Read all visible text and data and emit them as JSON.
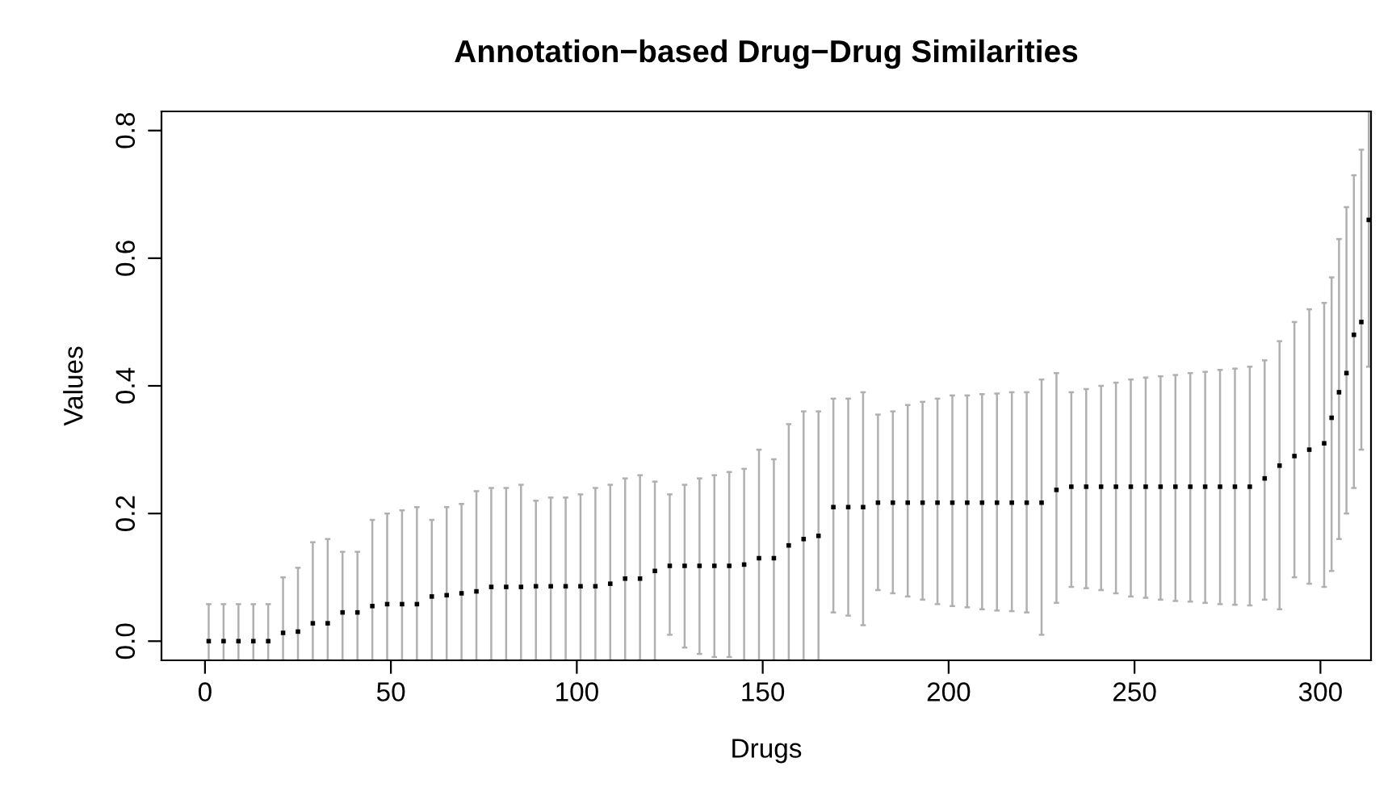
{
  "chart_data": {
    "type": "scatter",
    "title": "Annotation−based Drug−Drug Similarities",
    "xlabel": "Drugs",
    "ylabel": "Values",
    "x": [
      1,
      5,
      9,
      13,
      17,
      21,
      25,
      29,
      33,
      37,
      41,
      45,
      49,
      53,
      57,
      61,
      65,
      69,
      73,
      77,
      81,
      85,
      89,
      93,
      97,
      101,
      105,
      109,
      113,
      117,
      121,
      125,
      129,
      133,
      137,
      141,
      145,
      149,
      153,
      157,
      161,
      165,
      169,
      173,
      177,
      181,
      185,
      189,
      193,
      197,
      201,
      205,
      209,
      213,
      217,
      221,
      225,
      229,
      233,
      237,
      241,
      245,
      249,
      253,
      257,
      261,
      265,
      269,
      273,
      277,
      281,
      285,
      289,
      293,
      297,
      301,
      303,
      305,
      307,
      309,
      311,
      313
    ],
    "series": [
      {
        "color": "#000000",
        "values": [
          0,
          0,
          0,
          0,
          0,
          0.013,
          0.015,
          0.028,
          0.028,
          0.045,
          0.045,
          0.055,
          0.058,
          0.058,
          0.058,
          0.07,
          0.072,
          0.075,
          0.078,
          0.085,
          0.085,
          0.085,
          0.086,
          0.086,
          0.086,
          0.086,
          0.086,
          0.09,
          0.098,
          0.098,
          0.11,
          0.118,
          0.118,
          0.118,
          0.118,
          0.118,
          0.12,
          0.13,
          0.13,
          0.15,
          0.16,
          0.165,
          0.21,
          0.21,
          0.21,
          0.217,
          0.217,
          0.217,
          0.217,
          0.217,
          0.217,
          0.217,
          0.217,
          0.217,
          0.217,
          0.217,
          0.217,
          0.237,
          0.242,
          0.242,
          0.242,
          0.242,
          0.242,
          0.242,
          0.242,
          0.242,
          0.242,
          0.242,
          0.242,
          0.242,
          0.242,
          0.255,
          0.275,
          0.29,
          0.3,
          0.31,
          0.35,
          0.39,
          0.42,
          0.48,
          0.5,
          0.66
        ],
        "errors": [
          [
            -0.03,
            0.058
          ],
          [
            -0.03,
            0.058
          ],
          [
            -0.03,
            0.058
          ],
          [
            -0.03,
            0.058
          ],
          [
            -0.03,
            0.058
          ],
          [
            -0.03,
            0.1
          ],
          [
            -0.03,
            0.115
          ],
          [
            -0.03,
            0.155
          ],
          [
            -0.03,
            0.16
          ],
          [
            -0.03,
            0.14
          ],
          [
            -0.03,
            0.14
          ],
          [
            -0.03,
            0.19
          ],
          [
            -0.03,
            0.2
          ],
          [
            -0.03,
            0.205
          ],
          [
            -0.03,
            0.21
          ],
          [
            -0.03,
            0.19
          ],
          [
            -0.03,
            0.21
          ],
          [
            -0.03,
            0.215
          ],
          [
            -0.03,
            0.235
          ],
          [
            -0.03,
            0.24
          ],
          [
            -0.03,
            0.24
          ],
          [
            -0.03,
            0.245
          ],
          [
            -0.03,
            0.22
          ],
          [
            -0.03,
            0.225
          ],
          [
            -0.03,
            0.225
          ],
          [
            -0.03,
            0.23
          ],
          [
            -0.03,
            0.24
          ],
          [
            -0.03,
            0.245
          ],
          [
            -0.03,
            0.255
          ],
          [
            -0.03,
            0.26
          ],
          [
            -0.03,
            0.25
          ],
          [
            0.01,
            0.23
          ],
          [
            -0.01,
            0.245
          ],
          [
            -0.02,
            0.255
          ],
          [
            -0.025,
            0.26
          ],
          [
            -0.025,
            0.265
          ],
          [
            -0.03,
            0.27
          ],
          [
            -0.03,
            0.3
          ],
          [
            -0.03,
            0.285
          ],
          [
            -0.03,
            0.34
          ],
          [
            -0.03,
            0.36
          ],
          [
            -0.03,
            0.36
          ],
          [
            0.045,
            0.38
          ],
          [
            0.04,
            0.38
          ],
          [
            0.025,
            0.39
          ],
          [
            0.08,
            0.355
          ],
          [
            0.075,
            0.36
          ],
          [
            0.07,
            0.37
          ],
          [
            0.065,
            0.375
          ],
          [
            0.058,
            0.38
          ],
          [
            0.055,
            0.385
          ],
          [
            0.053,
            0.385
          ],
          [
            0.05,
            0.387
          ],
          [
            0.048,
            0.388
          ],
          [
            0.047,
            0.39
          ],
          [
            0.045,
            0.39
          ],
          [
            0.01,
            0.41
          ],
          [
            0.06,
            0.42
          ],
          [
            0.085,
            0.39
          ],
          [
            0.083,
            0.395
          ],
          [
            0.08,
            0.4
          ],
          [
            0.075,
            0.405
          ],
          [
            0.07,
            0.41
          ],
          [
            0.068,
            0.413
          ],
          [
            0.065,
            0.415
          ],
          [
            0.063,
            0.417
          ],
          [
            0.062,
            0.42
          ],
          [
            0.06,
            0.422
          ],
          [
            0.058,
            0.425
          ],
          [
            0.057,
            0.427
          ],
          [
            0.056,
            0.43
          ],
          [
            0.065,
            0.44
          ],
          [
            0.05,
            0.47
          ],
          [
            0.1,
            0.5
          ],
          [
            0.09,
            0.52
          ],
          [
            0.085,
            0.53
          ],
          [
            0.11,
            0.57
          ],
          [
            0.16,
            0.63
          ],
          [
            0.2,
            0.68
          ],
          [
            0.24,
            0.73
          ],
          [
            0.3,
            0.77
          ],
          [
            0.43,
            0.83
          ]
        ]
      }
    ],
    "xlim": [
      -11.7,
      313.6
    ],
    "ylim": [
      -0.03,
      0.83
    ],
    "xticks": [
      0,
      50,
      100,
      150,
      200,
      250,
      300
    ],
    "yticks": [
      {
        "value": 0,
        "label": "0.0"
      },
      {
        "value": 0.2,
        "label": "0.2"
      },
      {
        "value": 0.4,
        "label": "0.4"
      },
      {
        "value": 0.6,
        "label": "0.6"
      },
      {
        "value": 0.8,
        "label": "0.8"
      }
    ],
    "marker": "square",
    "grid": false,
    "legend": false
  }
}
